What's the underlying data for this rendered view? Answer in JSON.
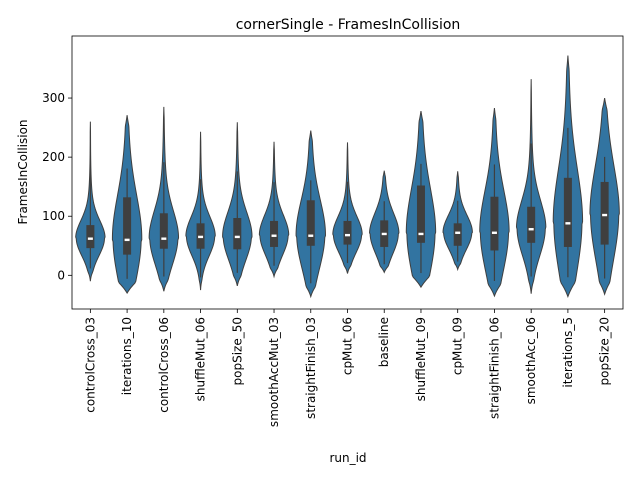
{
  "chart_data": {
    "type": "violin",
    "title": "cornerSingle - FramesInCollision",
    "xlabel": "run_id",
    "ylabel": "FramesInCollision",
    "ylim": [
      -57,
      405
    ],
    "yticks": [
      0,
      100,
      200,
      300
    ],
    "grid": false,
    "color": "#3274a1",
    "categories": [
      "controlCross_03",
      "iterations_10",
      "controlCross_06",
      "shuffleMut_06",
      "popSize_50",
      "smoothAccMut_03",
      "straightFinish_03",
      "cpMut_06",
      "baseline",
      "shuffleMut_09",
      "cpMut_09",
      "straightFinish_06",
      "smoothAcc_06",
      "iterations_5",
      "popSize_20"
    ],
    "series": [
      {
        "category": "controlCross_03",
        "min": -10,
        "q1": 46,
        "median": 62,
        "q3": 85,
        "max": 260
      },
      {
        "category": "iterations_10",
        "min": -30,
        "q1": 35,
        "median": 60,
        "q3": 132,
        "max": 271
      },
      {
        "category": "controlCross_06",
        "min": -27,
        "q1": 45,
        "median": 62,
        "q3": 105,
        "max": 285
      },
      {
        "category": "shuffleMut_06",
        "min": -25,
        "q1": 45,
        "median": 65,
        "q3": 88,
        "max": 243
      },
      {
        "category": "popSize_50",
        "min": -18,
        "q1": 44,
        "median": 65,
        "q3": 97,
        "max": 259
      },
      {
        "category": "smoothAccMut_03",
        "min": -2,
        "q1": 48,
        "median": 67,
        "q3": 92,
        "max": 226
      },
      {
        "category": "straightFinish_03",
        "min": -36,
        "q1": 50,
        "median": 67,
        "q3": 127,
        "max": 245
      },
      {
        "category": "cpMut_06",
        "min": 3,
        "q1": 52,
        "median": 68,
        "q3": 92,
        "max": 225
      },
      {
        "category": "baseline",
        "min": 5,
        "q1": 48,
        "median": 70,
        "q3": 93,
        "max": 177
      },
      {
        "category": "shuffleMut_09",
        "min": -20,
        "q1": 55,
        "median": 70,
        "q3": 152,
        "max": 278
      },
      {
        "category": "cpMut_09",
        "min": 10,
        "q1": 50,
        "median": 72,
        "q3": 88,
        "max": 176
      },
      {
        "category": "straightFinish_06",
        "min": -35,
        "q1": 42,
        "median": 72,
        "q3": 133,
        "max": 283
      },
      {
        "category": "smoothAcc_06",
        "min": -31,
        "q1": 55,
        "median": 78,
        "q3": 116,
        "max": 332
      },
      {
        "category": "iterations_5",
        "min": -36,
        "q1": 48,
        "median": 88,
        "q3": 165,
        "max": 372
      },
      {
        "category": "popSize_20",
        "min": -32,
        "q1": 52,
        "median": 102,
        "q3": 158,
        "max": 300
      }
    ]
  }
}
